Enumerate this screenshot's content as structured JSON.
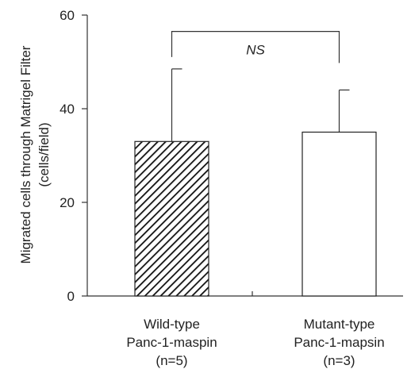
{
  "chart_data": {
    "type": "bar",
    "ylabel_line1": "Migrated cells through Matrigel Filter",
    "ylabel_line2": "(cells/field)",
    "ylim": [
      0,
      60
    ],
    "yticks": [
      0,
      20,
      40,
      60
    ],
    "categories": [
      {
        "lines": [
          "Wild-type",
          "Panc-1-maspin",
          "(n=5)"
        ],
        "value": 33,
        "error_plus": 15.5,
        "pattern": "hatched"
      },
      {
        "lines": [
          "Mutant-type",
          "Panc-1-mapsin",
          "(n=3)"
        ],
        "value": 35,
        "error_plus": 9,
        "pattern": "white"
      }
    ],
    "significance": {
      "label": "NS",
      "y": 56.5
    }
  }
}
